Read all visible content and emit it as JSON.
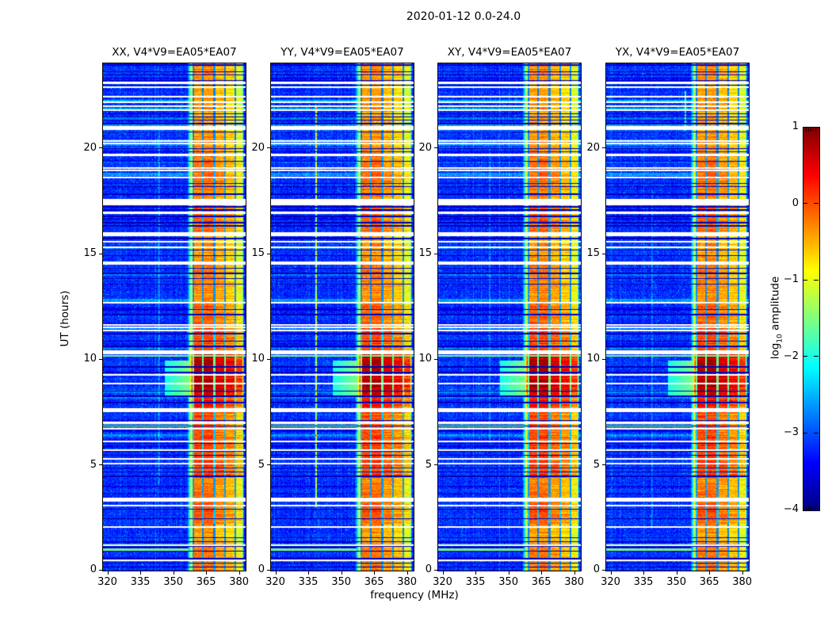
{
  "chart_data": {
    "type": "heatmap",
    "suptitle": "2020-01-12 0.0-24.0",
    "xlabel": "frequency (MHz)",
    "ylabel": "UT (hours)",
    "x_ticks": [
      320,
      335,
      350,
      365,
      380
    ],
    "y_ticks": [
      0,
      5,
      10,
      15,
      20
    ],
    "freq_range_mhz": [
      318,
      383
    ],
    "time_range_hours": [
      0,
      24
    ],
    "colormap": "jet",
    "colorbar": {
      "label_prefix": "log",
      "label_sub": "10",
      "label_suffix": " amplitude",
      "ticks": [
        1,
        0,
        -1,
        -2,
        -3,
        -4
      ],
      "vmin": -4,
      "vmax": 1
    },
    "panels": [
      {
        "id": "XX",
        "title": "XX, V4*V9=EA05*EA07",
        "seed": 11,
        "vlines": [
          [
            343.5,
            0.5,
            4,
            21
          ]
        ]
      },
      {
        "id": "YY",
        "title": "YY, V4*V9=EA05*EA07",
        "seed": 22,
        "vlines": [
          [
            338.6,
            1.9,
            3,
            22
          ]
        ]
      },
      {
        "id": "XY",
        "title": "XY, V4*V9=EA05*EA07",
        "seed": 33,
        "vlines": [
          [
            341.5,
            0.4,
            6,
            20
          ]
        ]
      },
      {
        "id": "YX",
        "title": "YX, V4*V9=EA05*EA07",
        "seed": 44,
        "vlines": [
          [
            354.0,
            1.3,
            20.8,
            22.7
          ],
          [
            339.0,
            0.35,
            2,
            18
          ]
        ]
      }
    ],
    "background_level": -3.15,
    "emission_band": {
      "freq_rise": [
        356.0,
        359.3
      ],
      "freq_fall": [
        381.3,
        382.4
      ],
      "channel_gap_freqs": [
        359.1,
        363.6,
        368.7,
        373.5,
        378.3
      ],
      "block_offsets": [
        -0.2,
        0.15,
        0.18,
        -0.02,
        -0.18,
        -0.5
      ],
      "time_profile": [
        [
          0.0,
          1.0,
          -0.35
        ],
        [
          1.0,
          2.2,
          -0.5
        ],
        [
          2.2,
          3.5,
          -0.2
        ],
        [
          3.5,
          4.4,
          -0.4
        ],
        [
          4.4,
          6.2,
          -0.05
        ],
        [
          6.2,
          7.6,
          -0.2
        ],
        [
          7.6,
          8.3,
          0.15
        ],
        [
          8.3,
          10.3,
          0.6
        ],
        [
          10.3,
          11.5,
          -0.1
        ],
        [
          11.5,
          12.7,
          -0.3
        ],
        [
          12.7,
          14.5,
          -0.45
        ],
        [
          14.5,
          15.9,
          -0.5
        ],
        [
          15.9,
          17.5,
          -0.25
        ],
        [
          17.5,
          19.7,
          -0.35
        ],
        [
          19.7,
          21.0,
          -0.5
        ],
        [
          21.0,
          23.1,
          -0.55
        ],
        [
          23.1,
          24.0,
          -0.45
        ]
      ]
    },
    "white_gap_rows": [
      [
        23.08,
        0.08
      ],
      [
        22.86,
        0.08
      ],
      [
        22.42,
        0.08
      ],
      [
        22.16,
        0.08
      ],
      [
        21.97,
        0.08
      ],
      [
        21.8,
        0.08
      ],
      [
        20.95,
        0.18
      ],
      [
        20.33,
        0.08
      ],
      [
        20.21,
        0.08
      ],
      [
        19.66,
        0.1
      ],
      [
        19.05,
        0.08
      ],
      [
        18.93,
        0.08
      ],
      [
        18.6,
        0.08
      ],
      [
        17.45,
        0.3
      ],
      [
        16.93,
        0.08
      ],
      [
        15.92,
        0.2
      ],
      [
        15.57,
        0.08
      ],
      [
        15.31,
        0.08
      ],
      [
        14.55,
        0.16
      ],
      [
        12.68,
        0.1
      ],
      [
        11.63,
        0.08
      ],
      [
        11.5,
        0.08
      ],
      [
        11.36,
        0.08
      ],
      [
        10.32,
        0.2
      ],
      [
        9.25,
        0.08
      ],
      [
        8.86,
        0.08
      ],
      [
        7.6,
        0.18
      ],
      [
        7.0,
        0.1
      ],
      [
        6.72,
        0.08
      ],
      [
        6.1,
        0.08
      ],
      [
        5.7,
        0.07
      ],
      [
        5.3,
        0.07
      ],
      [
        5.05,
        0.07
      ],
      [
        3.35,
        0.2
      ],
      [
        3.06,
        0.08
      ],
      [
        2.06,
        0.08
      ],
      [
        1.2,
        0.07
      ],
      [
        0.48,
        0.06
      ]
    ],
    "black_line_rows": [
      23.92,
      23.6,
      23.45,
      23.2,
      22.97,
      21.62,
      21.47,
      21.32,
      21.15,
      20.75,
      19.96,
      19.82,
      19.36,
      18.31,
      18.16,
      17.81,
      17.21,
      17.06,
      16.76,
      16.46,
      16.31,
      15.71,
      15.16,
      14.91,
      14.31,
      14.06,
      13.81,
      13.56,
      12.36,
      12.11,
      11.21,
      10.86,
      10.61,
      9.64,
      9.38,
      8.5,
      8.25,
      7.95,
      7.1,
      6.85,
      6.01,
      5.66,
      5.46,
      4.86,
      4.66,
      4.46,
      3.31,
      2.91,
      2.46,
      1.56,
      1.36,
      1.16,
      0.91,
      0.56,
      0.36,
      0.16
    ],
    "cyan_streak_rows": [
      [
        10.16,
        0.1,
        "full"
      ],
      [
        6.85,
        0.1,
        "left"
      ],
      [
        0.98,
        0.12,
        "left"
      ]
    ],
    "preband_enhancement": {
      "hours": [
        8.25,
        9.95
      ],
      "freqs": [
        346,
        358.5
      ],
      "level": -1.9
    }
  }
}
